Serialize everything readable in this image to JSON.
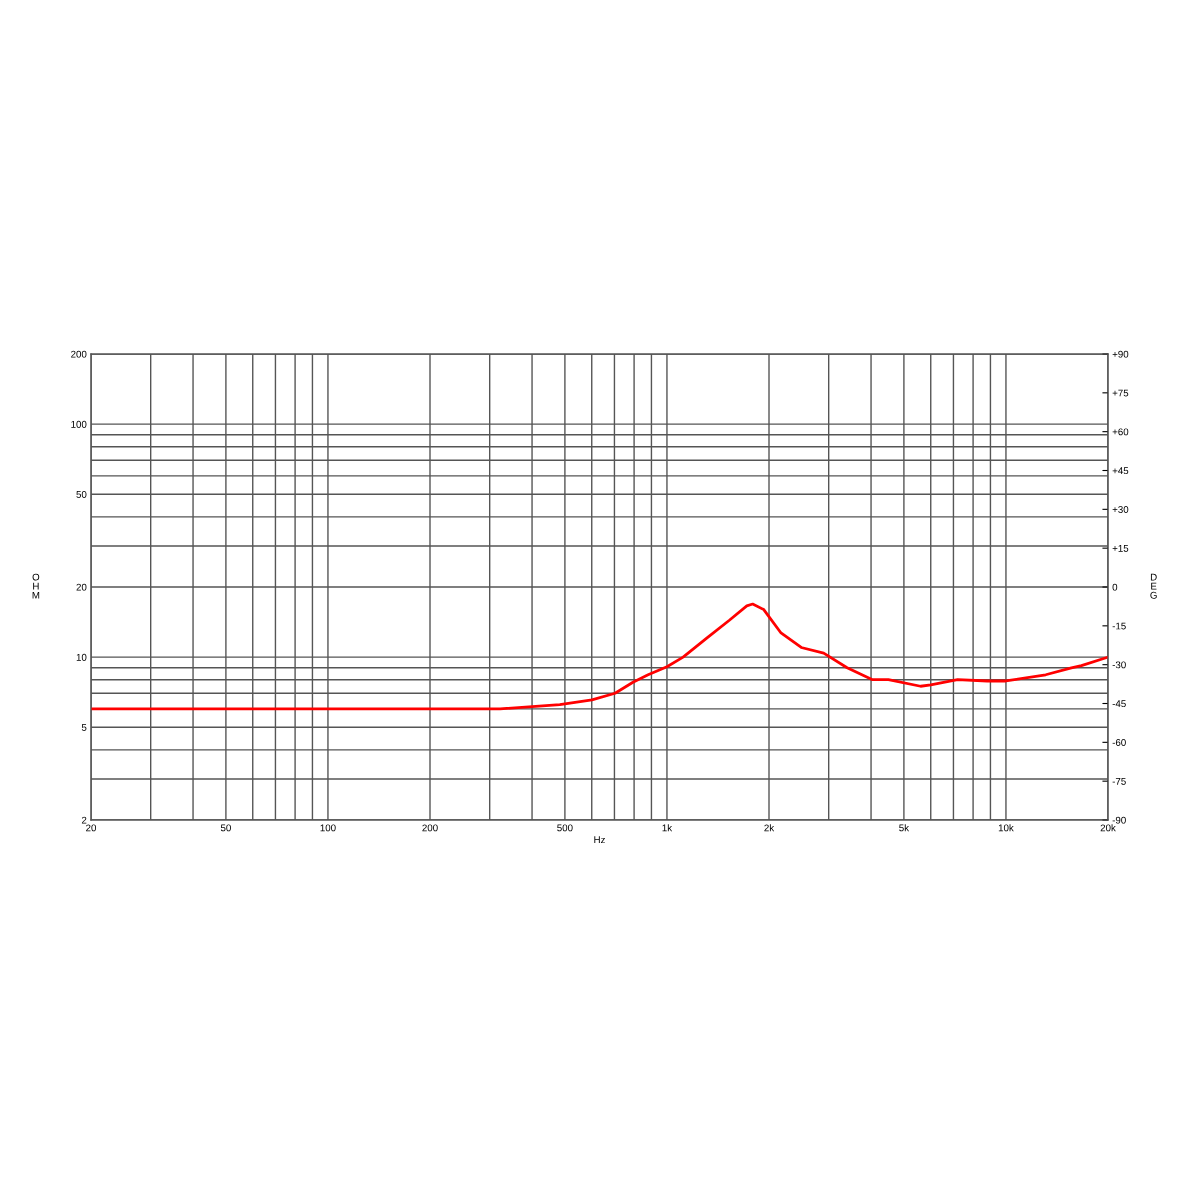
{
  "chart_data": {
    "type": "line",
    "xlabel": "Hz",
    "ylabel": "OHM",
    "y2label": "DEG",
    "log": "xy",
    "grid": true,
    "legend": false,
    "marker": "none",
    "line_style": "solid",
    "x": [
      20,
      237,
      322,
      483,
      601,
      703,
      794,
      880,
      1000,
      1116,
      1313,
      1528,
      1720,
      1790,
      1930,
      2170,
      2490,
      2900,
      3400,
      4040,
      4500,
      5600,
      6000,
      7200,
      8800,
      10000,
      13100,
      15600,
      16700,
      20000
    ],
    "series": [
      {
        "color": "#ff0000",
        "values": [
          6.0,
          6.0,
          6.0,
          6.25,
          6.55,
          7.0,
          7.8,
          8.4,
          9.1,
          10.0,
          12.1,
          14.4,
          16.6,
          16.9,
          16.0,
          12.7,
          11.0,
          10.4,
          9.0,
          8.0,
          8.0,
          7.5,
          7.6,
          8.0,
          7.9,
          7.9,
          8.4,
          9.0,
          9.2,
          10.0
        ]
      }
    ],
    "xlim": [
      20,
      20000
    ],
    "xticks": [
      20,
      {
        "value": 30,
        "label": null
      },
      {
        "value": 40,
        "label": null
      },
      50,
      {
        "value": 60,
        "label": null
      },
      {
        "value": 70,
        "label": null
      },
      {
        "value": 80,
        "label": null
      },
      {
        "value": 90,
        "label": null
      },
      100,
      200,
      {
        "value": 300,
        "label": null
      },
      {
        "value": 400,
        "label": null
      },
      500,
      {
        "value": 600,
        "label": null
      },
      {
        "value": 700,
        "label": null
      },
      {
        "value": 800,
        "label": null
      },
      {
        "value": 900,
        "label": null
      },
      {
        "value": 1000,
        "label": "1k"
      },
      {
        "value": 2000,
        "label": "2k"
      },
      {
        "value": 3000,
        "label": null
      },
      {
        "value": 4000,
        "label": null
      },
      {
        "value": 5000,
        "label": "5k"
      },
      {
        "value": 6000,
        "label": null
      },
      {
        "value": 7000,
        "label": null
      },
      {
        "value": 8000,
        "label": null
      },
      {
        "value": 9000,
        "label": null
      },
      {
        "value": 10000,
        "label": "10k"
      },
      {
        "value": 20000,
        "label": "20k"
      }
    ],
    "ylim": [
      2,
      200
    ],
    "yticks": [
      2,
      {
        "value": 3,
        "label": null
      },
      {
        "value": 4,
        "label": null
      },
      5,
      {
        "value": 6,
        "label": null
      },
      {
        "value": 7,
        "label": null
      },
      {
        "value": 8,
        "label": null
      },
      {
        "value": 9,
        "label": null
      },
      10,
      20,
      {
        "value": 30,
        "label": null
      },
      {
        "value": 40,
        "label": null
      },
      50,
      {
        "value": 60,
        "label": null
      },
      {
        "value": 70,
        "label": null
      },
      {
        "value": 80,
        "label": null
      },
      {
        "value": 90,
        "label": null
      },
      100,
      200
    ],
    "y2lim": [
      -90,
      90
    ],
    "y2ticks": [
      {
        "value": -90,
        "label": "-90"
      },
      {
        "value": -75,
        "label": "-75"
      },
      {
        "value": -60,
        "label": "-60"
      },
      {
        "value": -45,
        "label": "-45"
      },
      {
        "value": -30,
        "label": "-30"
      },
      {
        "value": -15,
        "label": "-15"
      },
      0,
      {
        "value": 15,
        "label": "+15"
      },
      {
        "value": 30,
        "label": "+30"
      },
      {
        "value": 45,
        "label": "+45"
      },
      {
        "value": 60,
        "label": "+60"
      },
      {
        "value": 75,
        "label": "+75"
      },
      {
        "value": 90,
        "label": "+90"
      }
    ]
  }
}
